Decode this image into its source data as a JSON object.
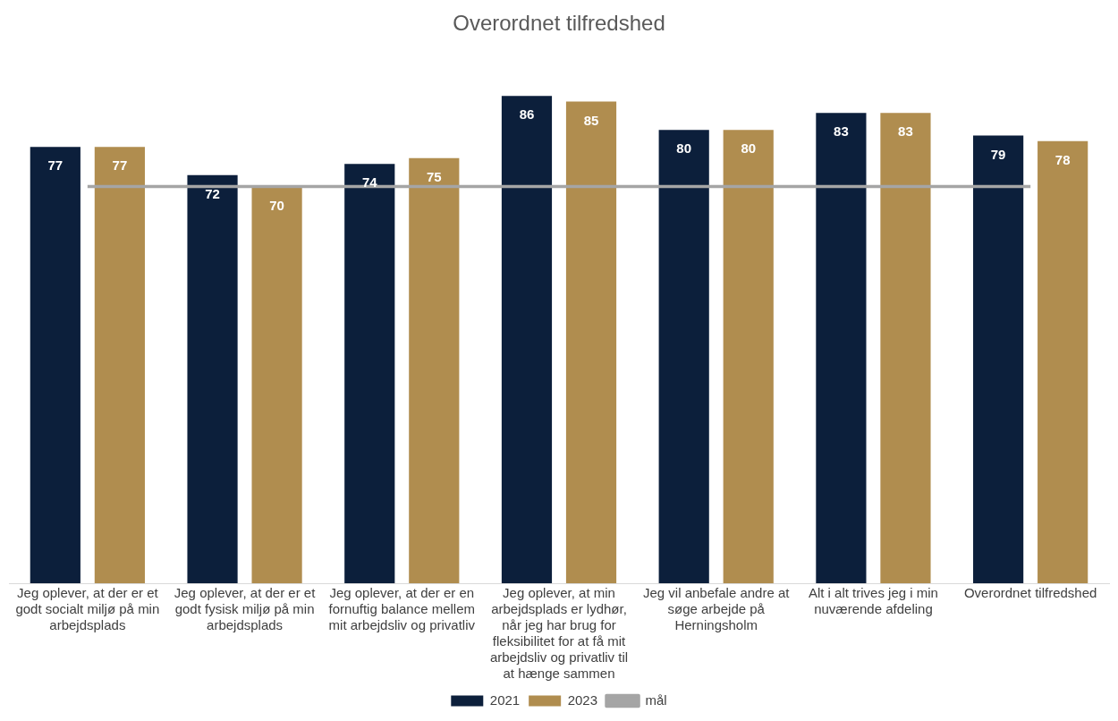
{
  "chart_data": {
    "type": "bar",
    "title": "Overordnet tilfredshed",
    "categories": [
      "Jeg oplever, at der er et godt socialt miljø på min arbejdsplads",
      "Jeg oplever, at der er et godt fysisk miljø på min arbejdsplads",
      "Jeg oplever, at der er en fornuftig balance mellem mit arbejdsliv og privatliv",
      "Jeg oplever, at min arbejdsplads er lydhør, når jeg har brug for fleksibilitet for at få mit arbejdsliv og privatliv til at hænge sammen",
      "Jeg vil anbefale andre at søge arbejde på Herningsholm",
      "Alt i alt trives jeg i min nuværende afdeling",
      "Overordnet tilfredshed"
    ],
    "series": [
      {
        "name": "2021",
        "color": "#0c1f3b",
        "values": [
          77,
          72,
          74,
          86,
          80,
          83,
          79
        ],
        "value_labels": [
          "77",
          "72",
          "74",
          "86",
          "80",
          "83",
          "79"
        ]
      },
      {
        "name": "2023",
        "color": "#b08d4f",
        "values": [
          77,
          70,
          75,
          85,
          80,
          83,
          78
        ],
        "value_labels": [
          "77",
          "70",
          "75",
          "85",
          "80",
          "83",
          "78"
        ]
      },
      {
        "name": "mål",
        "type": "line",
        "color": "#a5a5a5",
        "values": [
          70,
          70,
          70,
          70,
          70,
          70,
          70
        ]
      }
    ],
    "grid": false,
    "legend": "bottom",
    "tick_labels": "x",
    "marker": "none",
    "line_style": "solid"
  }
}
